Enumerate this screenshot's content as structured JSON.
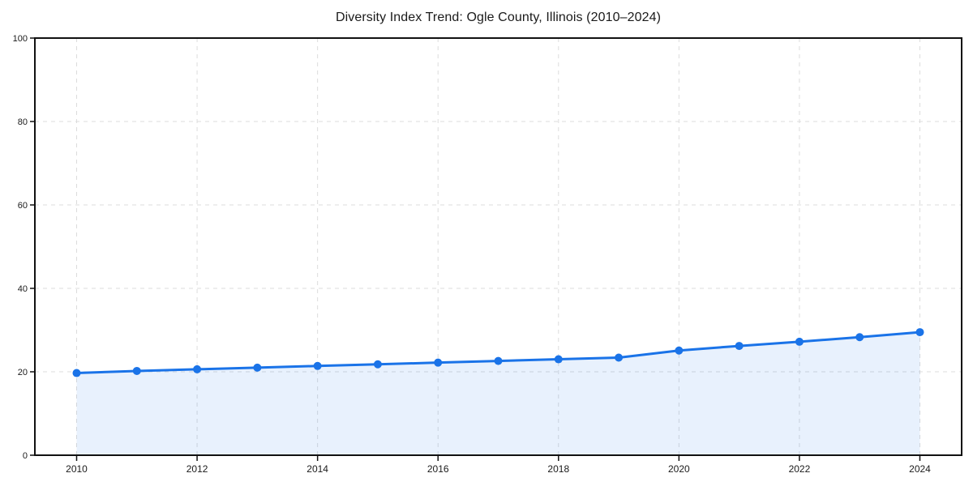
{
  "figure": {
    "background": "#ffffff"
  },
  "chart_data": {
    "type": "area",
    "title": "Diversity Index Trend: Ogle County, Illinois (2010–2024)",
    "x": [
      2010,
      2011,
      2012,
      2013,
      2014,
      2015,
      2016,
      2017,
      2018,
      2019,
      2020,
      2021,
      2022,
      2023,
      2024
    ],
    "series": [
      {
        "name": "Diversity Index",
        "values": [
          19.7,
          20.2,
          20.6,
          21.0,
          21.4,
          21.8,
          22.2,
          22.6,
          23.0,
          23.4,
          25.1,
          26.2,
          27.2,
          28.3,
          29.5
        ]
      }
    ],
    "xticks": [
      2010,
      2012,
      2014,
      2016,
      2018,
      2020,
      2022,
      2024
    ],
    "yticks": [
      0,
      20,
      40,
      60,
      80,
      100
    ],
    "ylim": [
      0,
      100
    ],
    "xlabel": "",
    "ylabel": "",
    "grid": true,
    "grid_style": "dashed",
    "legend_position": "none",
    "marker": "circle",
    "colors": {
      "line": "#1a73e8",
      "marker": "#1a73e8",
      "fill": "rgba(26,115,232,0.10)",
      "grid": "#dcdcdc",
      "spine": "#111111",
      "tick_text": "#1a1a1a",
      "background": "#ffffff"
    }
  }
}
